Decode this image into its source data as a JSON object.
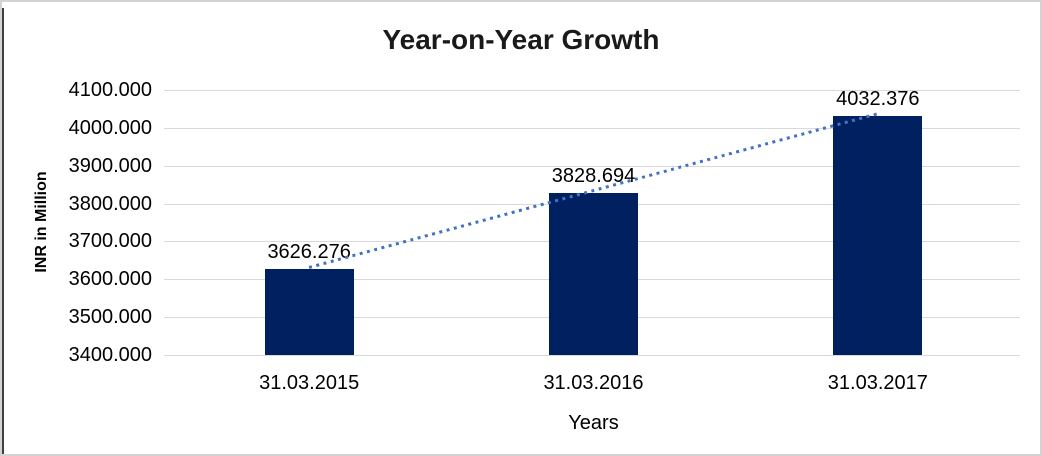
{
  "chart_data": {
    "type": "bar",
    "title": "Year-on-Year Growth",
    "xlabel": "Years",
    "ylabel": "INR in Million",
    "categories": [
      "31.03.2015",
      "31.03.2016",
      "31.03.2017"
    ],
    "values": [
      3626.276,
      3828.694,
      4032.376
    ],
    "data_labels": [
      "3626.276",
      "3828.694",
      "4032.376"
    ],
    "ylim": [
      3400,
      4100
    ],
    "ytick_step": 100,
    "ytick_labels": [
      "3400.000",
      "3500.000",
      "3600.000",
      "3700.000",
      "3800.000",
      "3900.000",
      "4000.000",
      "4100.000"
    ],
    "grid": "horizontal",
    "legend": "none",
    "trendline": {
      "type": "linear",
      "style": "dotted"
    },
    "colors": {
      "bar": "#002060",
      "trendline": "#4472C4",
      "gridline": "#d9d9d9",
      "axis_line": "#d9d9d9",
      "text": "#000000",
      "title": "#1a1a1a",
      "outer_border": "#d3d3d3",
      "left_edge": "#404040",
      "background": "#ffffff"
    }
  }
}
